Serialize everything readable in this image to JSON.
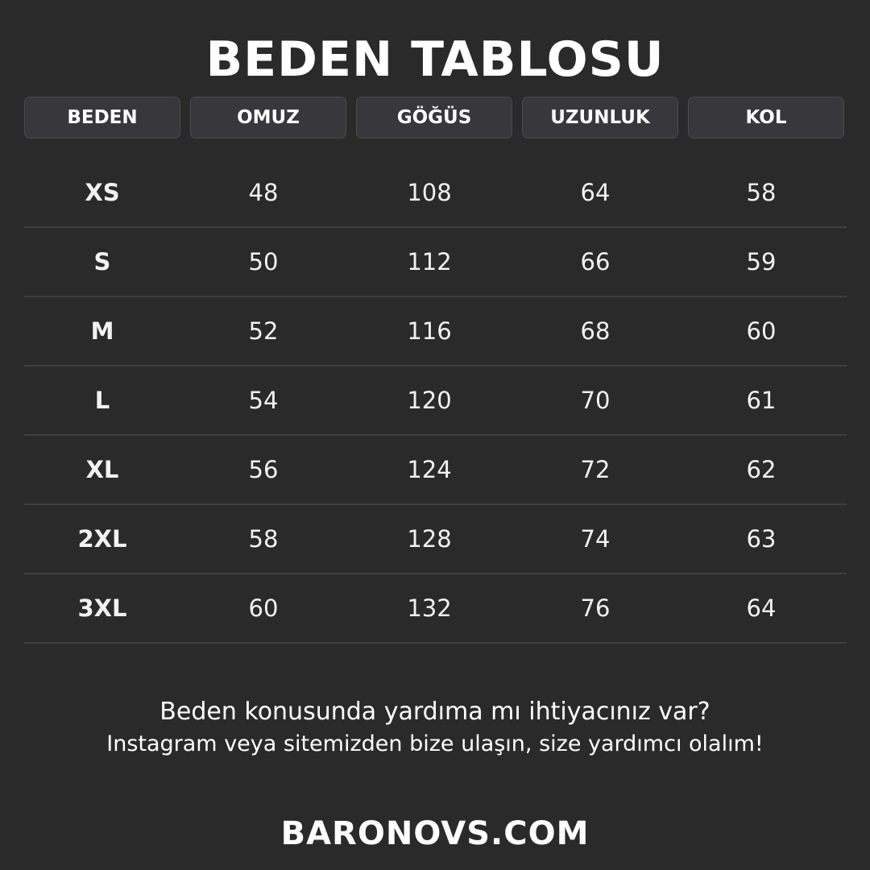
{
  "title": "BEDEN TABLOSU",
  "headers": [
    "BEDEN",
    "OMUZ",
    "GÖĞÜS",
    "UZUNLUK",
    "KOL"
  ],
  "rows": [
    [
      "XS",
      "48",
      "108",
      "64",
      "58"
    ],
    [
      "S",
      "50",
      "112",
      "66",
      "59"
    ],
    [
      "M",
      "52",
      "116",
      "68",
      "60"
    ],
    [
      "L",
      "54",
      "120",
      "70",
      "61"
    ],
    [
      "XL",
      "56",
      "124",
      "72",
      "62"
    ],
    [
      "2XL",
      "58",
      "128",
      "74",
      "63"
    ],
    [
      "3XL",
      "60",
      "132",
      "76",
      "64"
    ]
  ],
  "help": {
    "line1": "Beden konusunda yardıma mı ihtiyacınız var?",
    "line2": "Instagram veya sitemizden bize ulaşın, size yardımcı olalım!"
  },
  "website": "BARONOVS.COM",
  "colors": {
    "background": "#2a2a2a",
    "header_cell": "#37373c",
    "text": "#ffffff"
  }
}
